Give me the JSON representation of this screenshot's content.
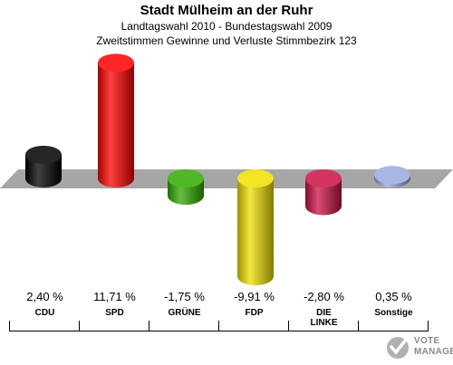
{
  "header": {
    "title": "Stadt Mülheim an der Ruhr",
    "subtitle1": "Landtagswahl 2010 - Bundestagswahl 2009",
    "subtitle2": "Zweitstimmen Gewinne und Verluste Stimmbezirk 123"
  },
  "chart_data": {
    "type": "bar",
    "title": "Stadt Mülheim an der Ruhr",
    "subtitle": "Landtagswahl 2010 - Bundestagswahl 2009 / Zweitstimmen Gewinne und Verluste Stimmbezirk 123",
    "categories": [
      "CDU",
      "SPD",
      "GRÜNE",
      "FDP",
      "DIE LINKE",
      "Sonstige"
    ],
    "values": [
      2.4,
      11.71,
      -1.75,
      -9.91,
      -2.8,
      0.35
    ],
    "value_labels": [
      "2,40 %",
      "11,71 %",
      "-1,75 %",
      "-9,91 %",
      "-2,80 %",
      "0,35 %"
    ],
    "colors": [
      "#000000",
      "#ff0000",
      "#33aa00",
      "#f0e000",
      "#cc1144",
      "#99aadd"
    ],
    "unit": "%"
  },
  "logo": {
    "line1": "VOTE",
    "line2": "MANAGER"
  }
}
